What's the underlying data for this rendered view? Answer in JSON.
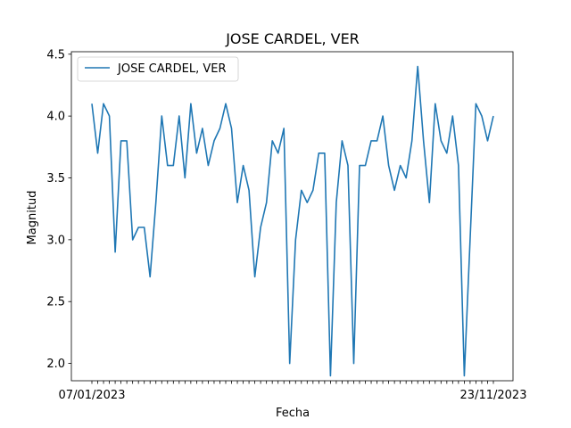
{
  "chart_data": {
    "type": "line",
    "title": "JOSE CARDEL, VER",
    "xlabel": "Fecha",
    "ylabel": "Magnitud",
    "ylim": [
      1.86,
      4.52
    ],
    "yticks": [
      "2.0",
      "2.5",
      "3.0",
      "3.5",
      "4.0",
      "4.5"
    ],
    "ytick_values": [
      2.0,
      2.5,
      3.0,
      3.5,
      4.0,
      4.5
    ],
    "xtick_labels": {
      "first": "07/01/2023",
      "last": "23/11/2023"
    },
    "legend_position": "upper left",
    "grid": false,
    "series": [
      {
        "name": "JOSE CARDEL, VER",
        "color": "#1f77b4",
        "values": [
          4.1,
          3.7,
          4.1,
          4.0,
          2.9,
          3.8,
          3.8,
          3.0,
          3.1,
          3.1,
          2.7,
          3.3,
          4.0,
          3.6,
          3.6,
          4.0,
          3.5,
          4.1,
          3.7,
          3.9,
          3.6,
          3.8,
          3.9,
          4.1,
          3.9,
          3.3,
          3.6,
          3.4,
          2.7,
          3.1,
          3.3,
          3.8,
          3.7,
          3.9,
          2.0,
          3.0,
          3.4,
          3.3,
          3.4,
          3.7,
          3.7,
          1.9,
          3.3,
          3.8,
          3.6,
          2.0,
          3.6,
          3.6,
          3.8,
          3.8,
          4.0,
          3.6,
          3.4,
          3.6,
          3.5,
          3.8,
          4.4,
          3.8,
          3.3,
          4.1,
          3.8,
          3.7,
          4.0,
          3.6,
          1.9,
          3.0,
          4.1,
          4.0,
          3.8,
          4.0
        ]
      }
    ]
  }
}
